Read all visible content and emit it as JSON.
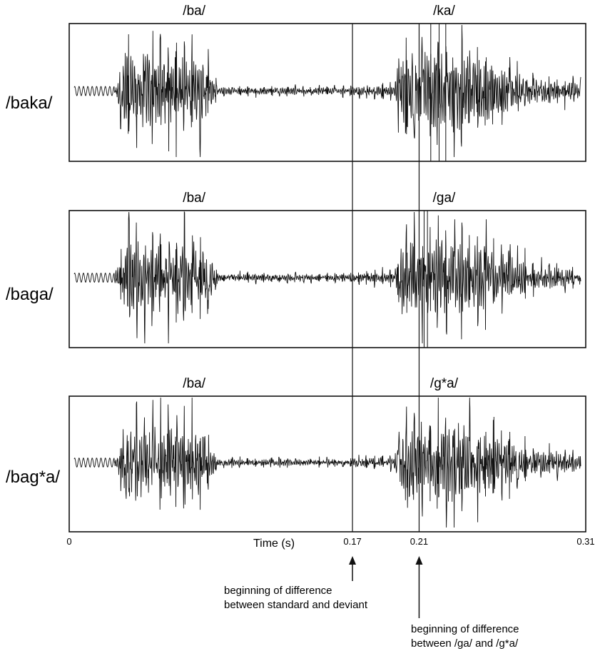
{
  "chart_data": {
    "type": "line",
    "xlabel": "Time (s)",
    "xlim": [
      0,
      0.31
    ],
    "x_ticks": [
      "0",
      "0.17",
      "0.21",
      "0.31"
    ],
    "tick_values": [
      0,
      0.17,
      0.21,
      0.31
    ],
    "reference_lines": [
      0.17,
      0.21
    ],
    "panels": [
      {
        "word": "/baka/",
        "syllables": [
          {
            "label": "/ba/",
            "x": 0.075
          },
          {
            "label": "/ka/",
            "x": 0.225
          }
        ]
      },
      {
        "word": "/baga/",
        "syllables": [
          {
            "label": "/ba/",
            "x": 0.075
          },
          {
            "label": "/ga/",
            "x": 0.225
          }
        ]
      },
      {
        "word": "/bag*a/",
        "syllables": [
          {
            "label": "/ba/",
            "x": 0.075
          },
          {
            "label": "/g*a/",
            "x": 0.225
          }
        ]
      }
    ],
    "annotations": [
      {
        "x": 0.17,
        "lines": [
          "beginning of difference",
          "between standard and deviant"
        ]
      },
      {
        "x": 0.21,
        "lines": [
          "beginning of difference",
          "between /ga/ and /g*a/"
        ]
      }
    ]
  }
}
